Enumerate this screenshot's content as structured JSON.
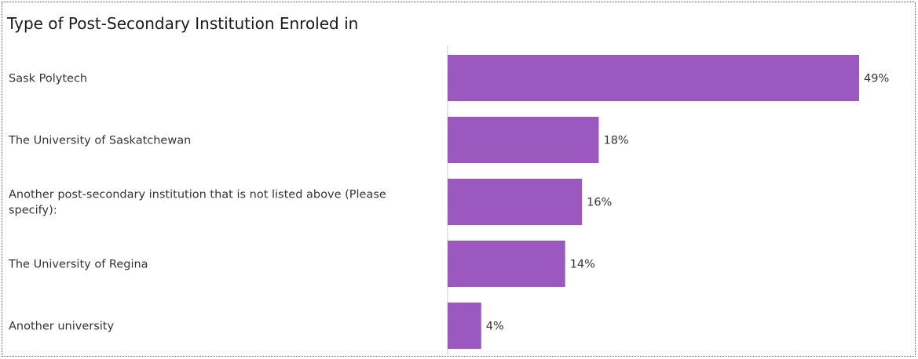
{
  "chart_data": {
    "type": "bar",
    "orientation": "horizontal",
    "title": "Type of Post-Secondary Institution Enroled in",
    "categories": [
      [
        "Sask Polytech"
      ],
      [
        "The University of Saskatchewan"
      ],
      [
        "Another post-secondary institution that is not listed above (Please",
        "specify):"
      ],
      [
        "The University of Regina"
      ],
      [
        "Another university"
      ]
    ],
    "values": [
      49,
      18,
      16,
      14,
      4
    ],
    "value_labels": [
      "49%",
      "18%",
      "16%",
      "14%",
      "4%"
    ],
    "unit": "%",
    "xlim": [
      0,
      49
    ],
    "bar_color": "#9b59bf",
    "axis_color": "#cccccc",
    "grid": false,
    "legend": "none"
  }
}
